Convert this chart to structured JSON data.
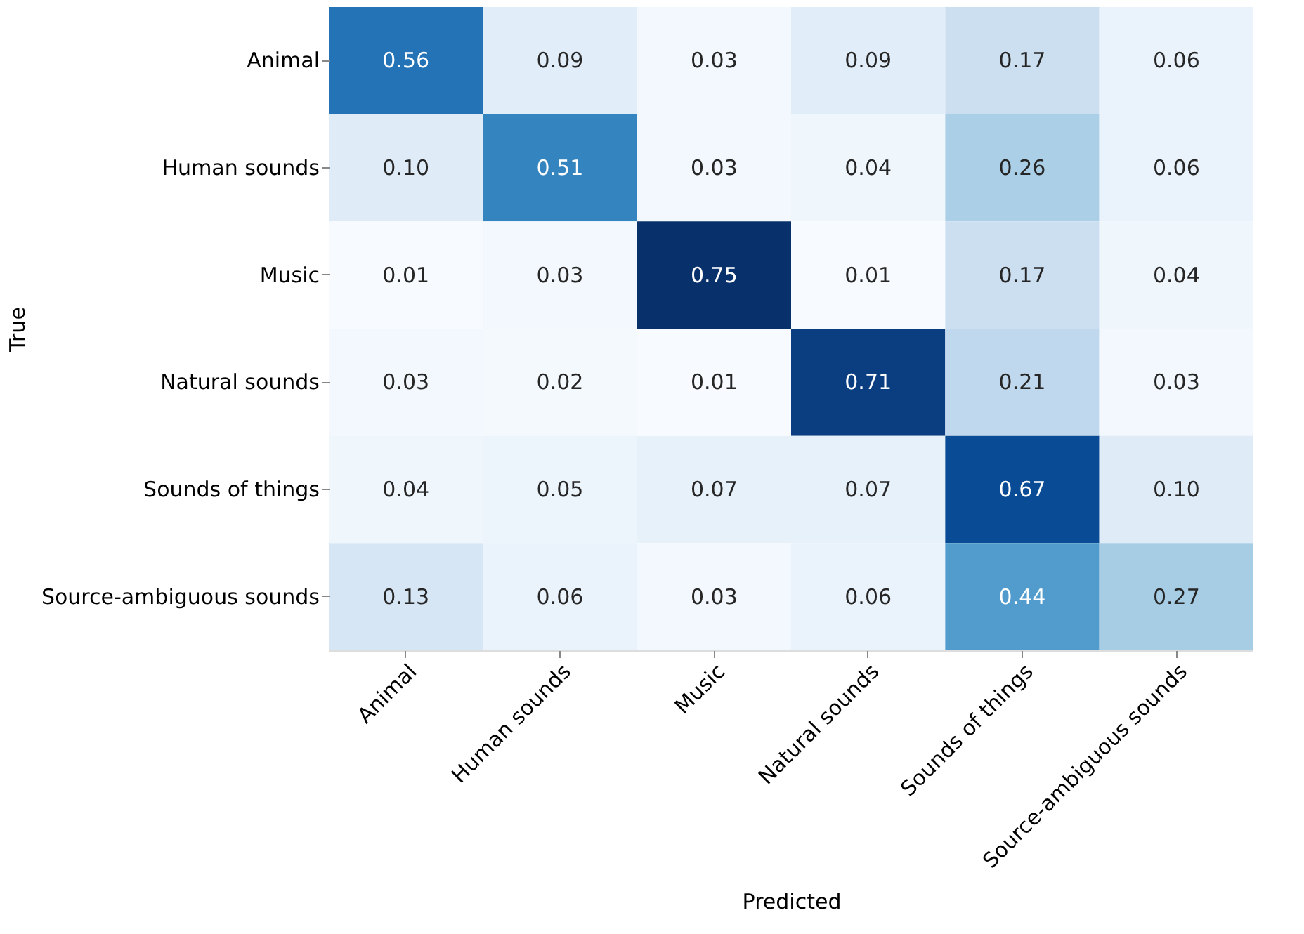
{
  "chart_data": {
    "type": "heatmap",
    "xlabel": "Predicted",
    "ylabel": "True",
    "categories": [
      "Animal",
      "Human sounds",
      "Music",
      "Natural sounds",
      "Sounds of things",
      "Source-ambiguous sounds"
    ],
    "y_categories": [
      "Animal",
      "Human sounds",
      "Music",
      "Natural sounds",
      "Sounds of things",
      "Source-ambiguous sounds"
    ],
    "cells": [
      [
        0.56,
        0.09,
        0.03,
        0.09,
        0.17,
        0.06
      ],
      [
        0.1,
        0.51,
        0.03,
        0.04,
        0.26,
        0.06
      ],
      [
        0.01,
        0.03,
        0.75,
        0.01,
        0.17,
        0.04
      ],
      [
        0.03,
        0.02,
        0.01,
        0.71,
        0.21,
        0.03
      ],
      [
        0.04,
        0.05,
        0.07,
        0.07,
        0.67,
        0.1
      ],
      [
        0.13,
        0.06,
        0.03,
        0.06,
        0.44,
        0.27
      ]
    ],
    "cell_labels": [
      [
        "0.56",
        "0.09",
        "0.03",
        "0.09",
        "0.17",
        "0.06"
      ],
      [
        "0.10",
        "0.51",
        "0.03",
        "0.04",
        "0.26",
        "0.06"
      ],
      [
        "0.01",
        "0.03",
        "0.75",
        "0.01",
        "0.17",
        "0.04"
      ],
      [
        "0.03",
        "0.02",
        "0.01",
        "0.71",
        "0.21",
        "0.03"
      ],
      [
        "0.04",
        "0.05",
        "0.07",
        "0.07",
        "0.67",
        "0.10"
      ],
      [
        "0.13",
        "0.06",
        "0.03",
        "0.06",
        "0.44",
        "0.27"
      ]
    ],
    "data_labels": true
  }
}
